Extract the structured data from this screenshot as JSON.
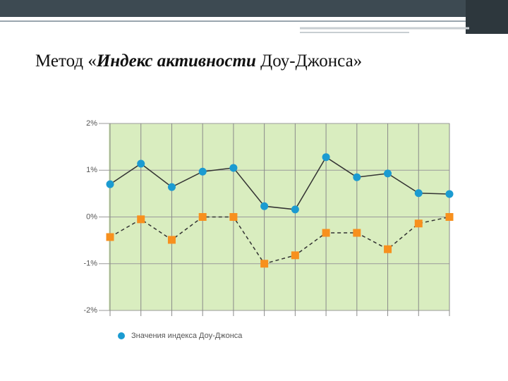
{
  "slide_title": [
    "Метод «",
    "Индекс активности",
    " Доу-Джонса»"
  ],
  "chart_data": {
    "type": "line",
    "categories": [
      null,
      null,
      null,
      null,
      null,
      null,
      null,
      null,
      null,
      null,
      null,
      null
    ],
    "series": [
      {
        "name": "Значения индекса Доу-Джонса",
        "color": "#1b9bd1",
        "marker": "circle",
        "line_color": "#333333",
        "dashed": false,
        "values": [
          0.7,
          1.14,
          0.64,
          0.97,
          1.05,
          0.23,
          0.16,
          1.28,
          0.85,
          0.93,
          0.51,
          0.49
        ]
      },
      {
        "color": "#f7901e",
        "marker": "square",
        "line_color": "#333333",
        "dashed": true,
        "values": [
          -0.43,
          -0.05,
          -0.49,
          0,
          0,
          -1.0,
          -0.82,
          -0.34,
          -0.34,
          -0.69,
          -0.14,
          0
        ]
      }
    ],
    "ylim": [
      -2,
      2
    ],
    "yticks": [
      {
        "value": 2,
        "label": "2%"
      },
      {
        "value": 1,
        "label": "1%"
      },
      {
        "value": 0,
        "label": "0%"
      },
      {
        "value": -1,
        "label": "-1%"
      },
      {
        "value": -2,
        "label": "-2%"
      }
    ],
    "grid": true,
    "legend": "bottom-left"
  }
}
